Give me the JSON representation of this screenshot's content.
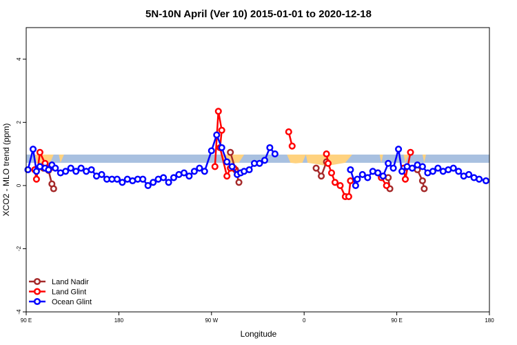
{
  "chart_data": {
    "type": "line",
    "title": "5N-10N April (Ver 10)   2015-01-01 to 2020-12-18",
    "xlabel": "Longitude",
    "ylabel": "XCO2 - MLO trend (ppm)",
    "xlim": [
      -90,
      180
    ],
    "ylim": [
      -4.0,
      5.0
    ],
    "x_ticks": [
      {
        "value": -90,
        "label": "90 E"
      },
      {
        "value": -36,
        "label": "180"
      },
      {
        "value": 18,
        "label": "90 W"
      },
      {
        "value": 72,
        "label": "0"
      },
      {
        "value": 126,
        "label": "90 E"
      },
      {
        "value": 180,
        "label": "180"
      }
    ],
    "y_ticks": [
      {
        "value": -4,
        "label": "-4"
      },
      {
        "value": -2,
        "label": "-2"
      },
      {
        "value": 0,
        "label": "0"
      },
      {
        "value": 2,
        "label": "2"
      },
      {
        "value": 4,
        "label": "4"
      }
    ],
    "legend_position": "bottom-left",
    "band": {
      "range": [
        0.72,
        0.98
      ],
      "color": "#a8c0e0"
    },
    "land_fill": {
      "color": "#ffd27f",
      "polygons": [
        [
          [
            -85,
            0.98
          ],
          [
            -84,
            0.72
          ],
          [
            -80,
            0.6
          ],
          [
            -76,
            0.72
          ],
          [
            -74,
            0.98
          ]
        ],
        [
          [
            -71,
            0.98
          ],
          [
            -70,
            0.72
          ],
          [
            -68,
            0.98
          ]
        ],
        [
          [
            24,
            0.98
          ],
          [
            26,
            0.72
          ],
          [
            34,
            0.72
          ],
          [
            37,
            0.98
          ]
        ],
        [
          [
            62,
            0.98
          ],
          [
            64,
            0.72
          ],
          [
            67,
            0.7
          ],
          [
            71,
            0.72
          ],
          [
            73,
            0.98
          ]
        ],
        [
          [
            73,
            0.98
          ],
          [
            74,
            0.72
          ],
          [
            79,
            0.68
          ],
          [
            85,
            0.62
          ],
          [
            96,
            0.72
          ],
          [
            100,
            0.98
          ]
        ],
        [
          [
            116,
            0.98
          ],
          [
            117,
            0.72
          ],
          [
            118,
            0.98
          ]
        ],
        [
          [
            130,
            0.98
          ],
          [
            131,
            0.72
          ],
          [
            133,
            0.98
          ]
        ],
        [
          [
            141,
            0.98
          ],
          [
            142,
            0.72
          ],
          [
            143,
            0.98
          ]
        ]
      ]
    },
    "series": [
      {
        "name": "Land Nadir",
        "color": "#a52a2a",
        "segments": [
          [
            [
              -80,
              0.55
            ],
            [
              -77,
              0.48
            ],
            [
              -75,
              0.05
            ],
            [
              -74,
              -0.1
            ]
          ],
          [
            [
              29,
              1.05
            ],
            [
              32,
              0.5
            ],
            [
              34,
              0.1
            ]
          ],
          [
            [
              79,
              0.55
            ],
            [
              82,
              0.3
            ],
            [
              85,
              0.75
            ]
          ],
          [
            [
              121,
              0.25
            ],
            [
              122,
              -0.1
            ]
          ],
          [
            [
              138,
              0.5
            ],
            [
              141,
              0.15
            ],
            [
              142,
              -0.1
            ]
          ]
        ]
      },
      {
        "name": "Land Glint",
        "color": "#ff0000",
        "segments": [
          [
            [
              -85,
              0.5
            ],
            [
              -84,
              0.2
            ],
            [
              -82,
              1.05
            ],
            [
              -79,
              0.7
            ],
            [
              -76,
              0.55
            ]
          ],
          [
            [
              20,
              0.6
            ],
            [
              22,
              2.35
            ],
            [
              24,
              1.75
            ],
            [
              23,
              1.2
            ],
            [
              27,
              0.3
            ],
            [
              29,
              0.55
            ],
            [
              31,
              0.55
            ]
          ],
          [
            [
              63,
              1.7
            ],
            [
              65,
              1.25
            ]
          ],
          [
            [
              85,
              1.0
            ],
            [
              86,
              0.7
            ],
            [
              88,
              0.4
            ],
            [
              90,
              0.1
            ],
            [
              93,
              0.0
            ],
            [
              96,
              -0.35
            ],
            [
              98,
              -0.35
            ],
            [
              99,
              0.15
            ]
          ],
          [
            [
              115,
              0.4
            ],
            [
              117,
              0.25
            ],
            [
              120,
              0.0
            ]
          ],
          [
            [
              130,
              0.55
            ],
            [
              131,
              0.2
            ],
            [
              134,
              1.05
            ]
          ]
        ]
      },
      {
        "name": "Ocean Glint",
        "color": "#0000ff",
        "segments": [
          [
            [
              -89,
              0.5
            ],
            [
              -86,
              1.15
            ],
            [
              -84,
              0.45
            ],
            [
              -82,
              0.6
            ],
            [
              -79,
              0.55
            ],
            [
              -77,
              0.5
            ],
            [
              -75,
              0.65
            ],
            [
              -73,
              0.55
            ],
            [
              -70,
              0.4
            ],
            [
              -67,
              0.45
            ],
            [
              -64,
              0.55
            ],
            [
              -61,
              0.45
            ],
            [
              -58,
              0.55
            ],
            [
              -55,
              0.45
            ],
            [
              -52,
              0.5
            ],
            [
              -49,
              0.3
            ],
            [
              -46,
              0.35
            ],
            [
              -43,
              0.2
            ],
            [
              -40,
              0.2
            ],
            [
              -37,
              0.2
            ],
            [
              -34,
              0.1
            ],
            [
              -31,
              0.2
            ],
            [
              -28,
              0.15
            ],
            [
              -25,
              0.2
            ],
            [
              -22,
              0.2
            ],
            [
              -19,
              0.0
            ],
            [
              -16,
              0.1
            ],
            [
              -13,
              0.2
            ],
            [
              -10,
              0.25
            ],
            [
              -7,
              0.1
            ],
            [
              -4,
              0.25
            ],
            [
              -1,
              0.35
            ],
            [
              2,
              0.4
            ],
            [
              5,
              0.3
            ],
            [
              8,
              0.45
            ],
            [
              11,
              0.55
            ],
            [
              14,
              0.45
            ],
            [
              18,
              1.1
            ],
            [
              21,
              1.6
            ],
            [
              24,
              1.2
            ],
            [
              27,
              0.75
            ],
            [
              30,
              0.6
            ],
            [
              33,
              0.35
            ],
            [
              35,
              0.4
            ],
            [
              37,
              0.45
            ],
            [
              40,
              0.5
            ],
            [
              43,
              0.7
            ],
            [
              46,
              0.7
            ],
            [
              49,
              0.8
            ],
            [
              52,
              1.2
            ],
            [
              55,
              1.0
            ]
          ],
          [
            [
              99,
              0.5
            ],
            [
              102,
              0.0
            ],
            [
              103,
              0.2
            ],
            [
              106,
              0.35
            ],
            [
              109,
              0.25
            ],
            [
              112,
              0.45
            ],
            [
              115,
              0.4
            ],
            [
              118,
              0.3
            ],
            [
              121,
              0.7
            ],
            [
              124,
              0.55
            ],
            [
              127,
              1.15
            ],
            [
              129,
              0.45
            ],
            [
              132,
              0.6
            ],
            [
              135,
              0.55
            ],
            [
              138,
              0.65
            ],
            [
              141,
              0.6
            ],
            [
              144,
              0.4
            ],
            [
              147,
              0.45
            ],
            [
              150,
              0.55
            ],
            [
              153,
              0.45
            ],
            [
              156,
              0.5
            ],
            [
              159,
              0.55
            ],
            [
              162,
              0.45
            ],
            [
              165,
              0.3
            ],
            [
              168,
              0.35
            ],
            [
              171,
              0.25
            ],
            [
              174,
              0.2
            ],
            [
              178,
              0.15
            ]
          ]
        ]
      }
    ]
  }
}
